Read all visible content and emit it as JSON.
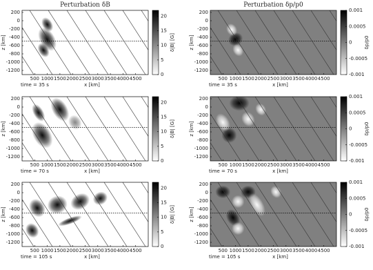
{
  "chart_data": [
    {
      "type": "heatmap",
      "title": "Perturbation δB",
      "xlabel": "x [km]",
      "ylabel": "z [km]",
      "annotation": "time = 35 s",
      "xlim": [
        0,
        5000
      ],
      "xticks": [
        500,
        1000,
        1500,
        2000,
        2500,
        3000,
        3500,
        4000,
        4500
      ],
      "ylim": [
        -1300,
        250
      ],
      "yticks": [
        200,
        0,
        -200,
        -400,
        -600,
        -800,
        -1000,
        -1200
      ],
      "clim": [
        0,
        22
      ],
      "cticks": [
        0,
        5,
        10,
        15,
        20
      ],
      "clabel": "δ|B| [G]",
      "colormap": "white-black"
    },
    {
      "type": "heatmap",
      "title": "Perturbation δp/p0",
      "xlabel": "x [km]",
      "ylabel": "z [km]",
      "annotation": "time = 35 s",
      "xlim": [
        0,
        5000
      ],
      "xticks": [
        500,
        1000,
        1500,
        2000,
        2500,
        3000,
        3500,
        4000,
        4500
      ],
      "ylim": [
        -1300,
        250
      ],
      "yticks": [
        200,
        0,
        -200,
        -400,
        -600,
        -800,
        -1000,
        -1200
      ],
      "clim": [
        -0.001,
        0.001
      ],
      "cticks": [
        0.001,
        0.0005,
        0,
        -0.0005,
        -0.001
      ],
      "clabel": "δp/p0",
      "colormap": "white-gray-black"
    },
    {
      "type": "heatmap",
      "xlabel": "x [km]",
      "ylabel": "z [km]",
      "annotation": "time = 70 s",
      "xlim": [
        0,
        5000
      ],
      "xticks": [
        500,
        1000,
        1500,
        2000,
        2500,
        3000,
        3500,
        4000,
        4500
      ],
      "ylim": [
        -1300,
        250
      ],
      "yticks": [
        200,
        0,
        -200,
        -400,
        -600,
        -800,
        -1000,
        -1200
      ],
      "clim": [
        0,
        22
      ],
      "cticks": [
        0,
        5,
        10,
        15,
        20
      ],
      "clabel": "δ|B| [G]",
      "colormap": "white-black"
    },
    {
      "type": "heatmap",
      "xlabel": "x [km]",
      "ylabel": "z [km]",
      "annotation": "time = 70 s",
      "xlim": [
        0,
        5000
      ],
      "xticks": [
        500,
        1000,
        1500,
        2000,
        2500,
        3000,
        3500,
        4000,
        4500
      ],
      "ylim": [
        -1300,
        250
      ],
      "yticks": [
        200,
        0,
        -200,
        -400,
        -600,
        -800,
        -1000,
        -1200
      ],
      "clim": [
        -0.001,
        0.001
      ],
      "cticks": [
        0.001,
        0.0005,
        0,
        -0.0005,
        -0.001
      ],
      "clabel": "δp/p0",
      "colormap": "white-gray-black"
    },
    {
      "type": "heatmap",
      "xlabel": "x [km]",
      "ylabel": "z [km]",
      "annotation": "time = 105 s",
      "xlim": [
        0,
        5000
      ],
      "xticks": [
        500,
        1000,
        1500,
        2000,
        2500,
        3000,
        3500,
        4000,
        4500
      ],
      "ylim": [
        -1300,
        250
      ],
      "yticks": [
        200,
        0,
        -200,
        -400,
        -600,
        -800,
        -1000,
        -1200
      ],
      "clim": [
        0,
        22
      ],
      "cticks": [
        0,
        5,
        10,
        15,
        20
      ],
      "clabel": "δ|B| [G]",
      "colormap": "white-black"
    },
    {
      "type": "heatmap",
      "xlabel": "x [km]",
      "ylabel": "z [km]",
      "annotation": "time = 105 s",
      "xlim": [
        0,
        5000
      ],
      "xticks": [
        500,
        1000,
        1500,
        2000,
        2500,
        3000,
        3500,
        4000,
        4500
      ],
      "ylim": [
        -1300,
        250
      ],
      "yticks": [
        200,
        0,
        -200,
        -400,
        -600,
        -800,
        -1000,
        -1200
      ],
      "clim": [
        -0.001,
        0.001
      ],
      "cticks": [
        0.001,
        0.0005,
        0,
        -0.0005,
        -0.001
      ],
      "clabel": "δp/p0",
      "colormap": "white-gray-black"
    }
  ]
}
